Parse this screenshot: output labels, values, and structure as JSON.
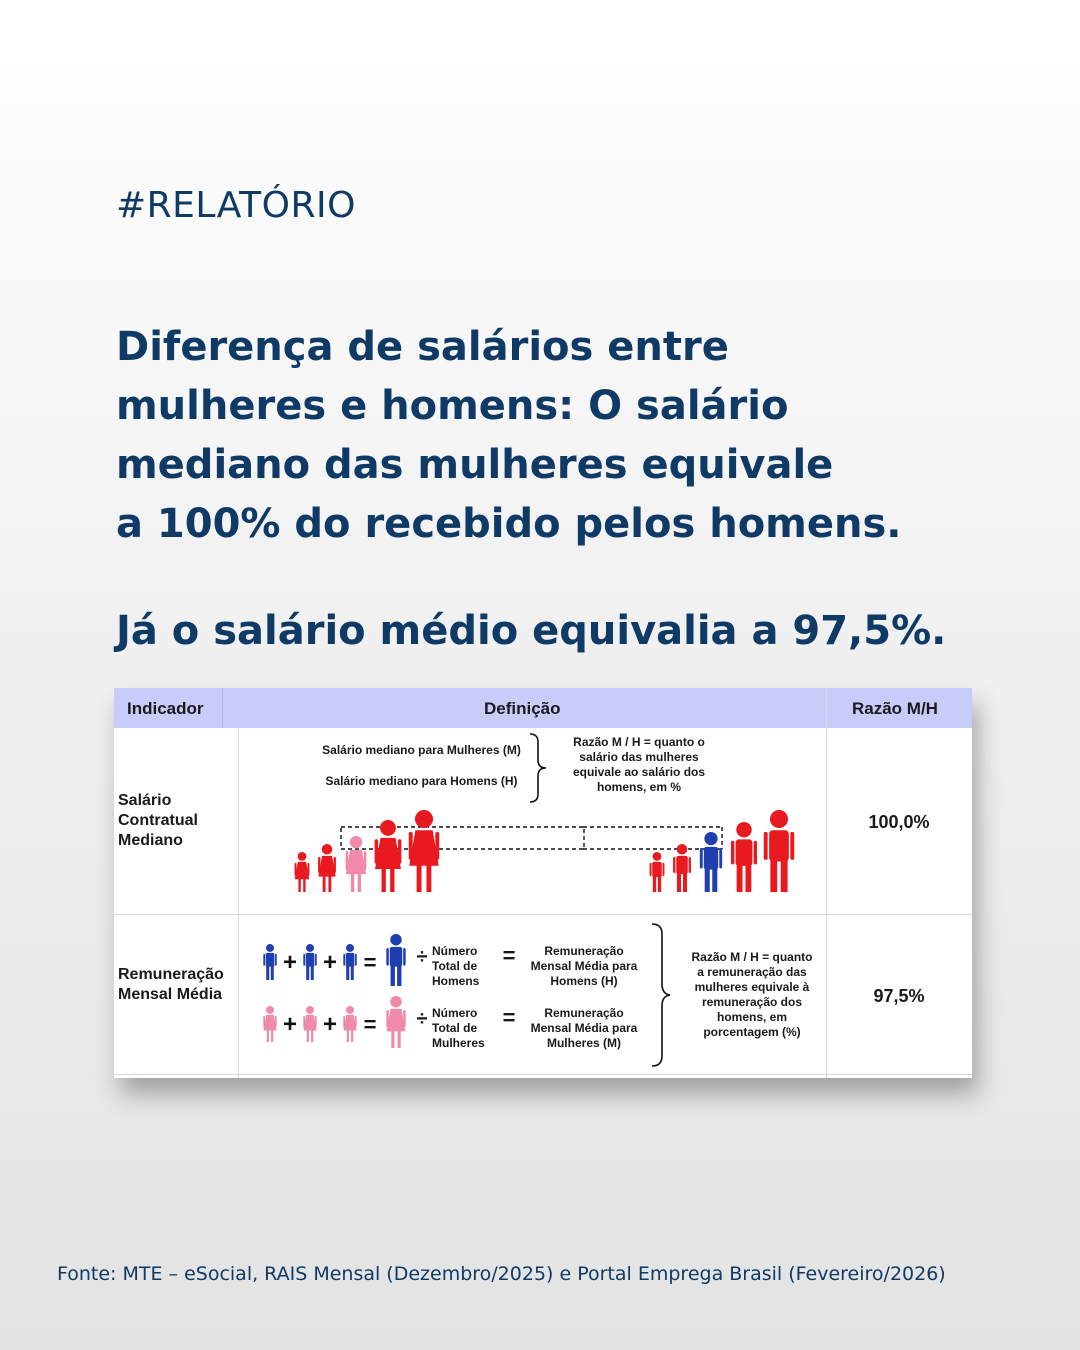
{
  "tag": "#RELATÓRIO",
  "headline": {
    "lines": [
      "Diferença de salários entre",
      "mulheres e homens: O salário",
      "mediano das mulheres equivale",
      "a 100% do recebido pelos homens."
    ]
  },
  "subheadline": "Já o salário médio equivalia a 97,5%.",
  "table": {
    "headers": {
      "indicator": "Indicador",
      "definition": "Definição",
      "ratio": "Razão M/H"
    },
    "rows": [
      {
        "indicator_lines": [
          "Salário",
          "Contratual",
          "Mediano"
        ],
        "def_women": "Salário mediano para Mulheres (M)",
        "def_men": "Salário mediano para Homens (H)",
        "ratio_note_lines": [
          "Razão M / H = quanto o",
          "salário das mulheres",
          "equivale ao salário dos",
          "homens, em %"
        ],
        "value": "100,0%"
      },
      {
        "indicator_lines": [
          "Remuneração",
          "Mensal Média"
        ],
        "men_div_lines": [
          "Número",
          "Total de",
          "Homens"
        ],
        "men_result_lines": [
          "Remuneração",
          "Mensal Média para",
          "Homens (H)"
        ],
        "women_div_lines": [
          "Número",
          "Total de",
          "Mulheres"
        ],
        "women_result_lines": [
          "Remuneração",
          "Mensal Média para",
          "Mulheres (M)"
        ],
        "ratio_note_lines": [
          "Razão M / H = quanto",
          "a remuneração das",
          "mulheres equivale à",
          "remuneração dos",
          "homens, em",
          "porcentagem (%)"
        ],
        "value": "97,5%"
      }
    ]
  },
  "symbols": {
    "plus": "+",
    "equals": "=",
    "divide": "÷"
  },
  "colors": {
    "navy": "#0f3a66",
    "header_bg": "#c9ccfb",
    "red": "#e8191f",
    "pink": "#f08aa8",
    "blue": "#1f3eb0"
  },
  "icons": [
    "woman-figure-icon",
    "man-figure-icon",
    "curly-brace-icon",
    "dashed-box-icon"
  ],
  "source": "Fonte: MTE – eSocial, RAIS Mensal (Dezembro/2025) e Portal Emprega Brasil (Fevereiro/2026)"
}
